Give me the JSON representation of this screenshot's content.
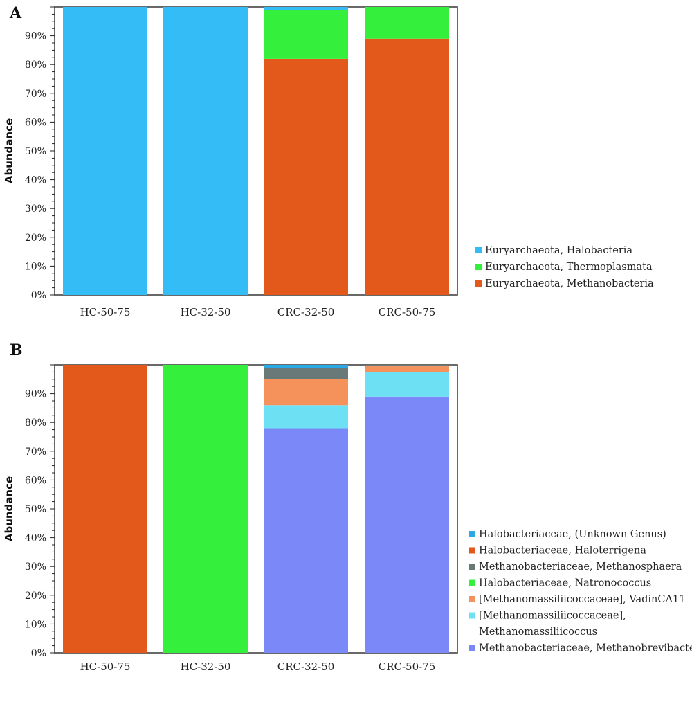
{
  "chart_data": [
    {
      "panel_label": "A",
      "type": "bar",
      "stacked": true,
      "ylabel": "Abundance",
      "ylim": [
        0,
        100
      ],
      "yticks": [
        "0%",
        "10%",
        "20%",
        "30%",
        "40%",
        "50%",
        "60%",
        "70%",
        "80%",
        "90%"
      ],
      "categories": [
        "HC-50-75",
        "HC-32-50",
        "CRC-32-50",
        "CRC-50-75"
      ],
      "legend_position": "right",
      "series": [
        {
          "name": "Euryarchaeota, Methanobacteria",
          "color": "#E3581B",
          "values": [
            0,
            0,
            82,
            89
          ]
        },
        {
          "name": "Euryarchaeota, Thermoplasmata",
          "color": "#34F03D",
          "values": [
            0,
            0,
            17,
            11
          ]
        },
        {
          "name": "Euryarchaeota, Halobacteria",
          "color": "#34BCF6",
          "values": [
            100,
            100,
            1,
            0
          ]
        }
      ],
      "legend_order": [
        2,
        1,
        0
      ]
    },
    {
      "panel_label": "B",
      "type": "bar",
      "stacked": true,
      "ylabel": "Abundance",
      "ylim": [
        0,
        100
      ],
      "yticks": [
        "0%",
        "10%",
        "20%",
        "30%",
        "40%",
        "50%",
        "60%",
        "70%",
        "80%",
        "90%"
      ],
      "categories": [
        "HC-50-75",
        "HC-32-50",
        "CRC-32-50",
        "CRC-50-75"
      ],
      "legend_position": "right",
      "series": [
        {
          "name": "Methanobacteriaceae, Methanobrevibacter",
          "color": "#7B89F8",
          "values": [
            0,
            0,
            78,
            89
          ]
        },
        {
          "name": "[Methanomassiliicoccaceae], Methanomassiliicoccus",
          "name_lines": [
            "[Methanomassiliicoccaceae],",
            "Methanomassiliicoccus"
          ],
          "color": "#6EE0F3",
          "values": [
            0,
            0,
            8,
            8.5
          ]
        },
        {
          "name": "[Methanomassiliicoccaceae], VadinCA11",
          "color": "#F5915A",
          "values": [
            0,
            0,
            9,
            2
          ]
        },
        {
          "name": "Halobacteriaceae, Natronococcus",
          "color": "#34F03D",
          "values": [
            0,
            100,
            0,
            0
          ]
        },
        {
          "name": "Methanobacteriaceae, Methanosphaera",
          "color": "#687978",
          "values": [
            0,
            0,
            4,
            0.5
          ]
        },
        {
          "name": "Halobacteriaceae, Haloterrigena",
          "color": "#E3581B",
          "values": [
            100,
            0,
            0,
            0
          ]
        },
        {
          "name": "Halobacteriaceae, (Unknown Genus)",
          "color": "#2AA8E6",
          "values": [
            0,
            0,
            1,
            0
          ]
        }
      ],
      "legend_order": [
        6,
        5,
        4,
        3,
        2,
        1,
        0
      ]
    }
  ]
}
